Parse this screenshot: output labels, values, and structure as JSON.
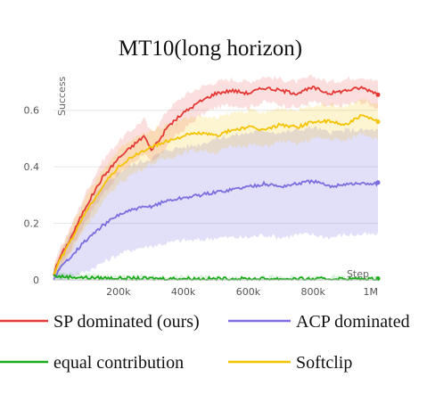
{
  "chart_data": {
    "type": "line",
    "title": "MT10(long horizon)",
    "xlabel": "Step",
    "ylabel": "Success",
    "xlim": [
      0,
      1000000
    ],
    "ylim": [
      0,
      0.7
    ],
    "x_ticks": [
      200000,
      400000,
      600000,
      800000,
      1000000
    ],
    "x_tick_labels": [
      "200k",
      "400k",
      "600k",
      "800k",
      "1M"
    ],
    "y_ticks": [
      0,
      0.2,
      0.4,
      0.6
    ],
    "y_tick_labels": [
      "0",
      "0.2",
      "0.4",
      "0.6"
    ],
    "grid": true,
    "legend_position": "bottom",
    "series": [
      {
        "name": "SP dominated (ours)",
        "color": "#e53935",
        "x": [
          0,
          20000,
          50000,
          100000,
          150000,
          200000,
          250000,
          280000,
          300000,
          330000,
          350000,
          400000,
          450000,
          500000,
          550000,
          600000,
          650000,
          700000,
          750000,
          800000,
          850000,
          900000,
          950000,
          1000000
        ],
        "y": [
          0.02,
          0.08,
          0.14,
          0.26,
          0.36,
          0.43,
          0.48,
          0.51,
          0.46,
          0.5,
          0.54,
          0.59,
          0.63,
          0.66,
          0.67,
          0.66,
          0.68,
          0.67,
          0.66,
          0.68,
          0.66,
          0.67,
          0.68,
          0.66
        ],
        "band_lower": [
          0.0,
          0.05,
          0.1,
          0.21,
          0.3,
          0.37,
          0.42,
          0.45,
          0.41,
          0.44,
          0.48,
          0.53,
          0.58,
          0.61,
          0.62,
          0.61,
          0.63,
          0.62,
          0.61,
          0.63,
          0.61,
          0.62,
          0.63,
          0.61
        ],
        "band_upper": [
          0.04,
          0.11,
          0.18,
          0.31,
          0.42,
          0.49,
          0.54,
          0.57,
          0.52,
          0.56,
          0.6,
          0.65,
          0.68,
          0.7,
          0.71,
          0.7,
          0.72,
          0.71,
          0.7,
          0.72,
          0.7,
          0.71,
          0.72,
          0.7
        ]
      },
      {
        "name": "ACP dominated",
        "color": "#7b6fe0",
        "x": [
          0,
          20000,
          50000,
          100000,
          150000,
          200000,
          250000,
          300000,
          350000,
          400000,
          450000,
          500000,
          550000,
          600000,
          650000,
          700000,
          750000,
          800000,
          850000,
          900000,
          950000,
          1000000
        ],
        "y": [
          0.0,
          0.04,
          0.08,
          0.14,
          0.19,
          0.23,
          0.25,
          0.26,
          0.28,
          0.29,
          0.3,
          0.31,
          0.32,
          0.33,
          0.34,
          0.33,
          0.34,
          0.35,
          0.33,
          0.34,
          0.34,
          0.34
        ],
        "band_lower": [
          0.0,
          0.0,
          0.01,
          0.03,
          0.06,
          0.09,
          0.11,
          0.12,
          0.13,
          0.14,
          0.14,
          0.15,
          0.15,
          0.15,
          0.16,
          0.15,
          0.16,
          0.16,
          0.15,
          0.16,
          0.16,
          0.16
        ],
        "band_upper": [
          0.02,
          0.09,
          0.16,
          0.26,
          0.33,
          0.38,
          0.41,
          0.43,
          0.46,
          0.47,
          0.48,
          0.5,
          0.51,
          0.52,
          0.53,
          0.52,
          0.53,
          0.54,
          0.52,
          0.53,
          0.53,
          0.53
        ]
      },
      {
        "name": "equal contribution",
        "color": "#1aab1a",
        "x": [
          0,
          20000,
          100000,
          200000,
          300000,
          400000,
          500000,
          600000,
          700000,
          800000,
          900000,
          1000000
        ],
        "y": [
          0.015,
          0.012,
          0.008,
          0.006,
          0.005,
          0.005,
          0.004,
          0.004,
          0.004,
          0.003,
          0.004,
          0.003
        ],
        "band_lower": [
          0.0,
          0.0,
          0.0,
          0.0,
          0.0,
          0.0,
          0.0,
          0.0,
          0.0,
          0.0,
          0.0,
          0.0
        ],
        "band_upper": [
          0.03,
          0.025,
          0.018,
          0.014,
          0.012,
          0.011,
          0.01,
          0.01,
          0.01,
          0.009,
          0.01,
          0.009
        ]
      },
      {
        "name": "Softclip",
        "color": "#f5c400",
        "x": [
          0,
          20000,
          50000,
          100000,
          150000,
          200000,
          250000,
          300000,
          350000,
          400000,
          450000,
          500000,
          550000,
          600000,
          650000,
          700000,
          750000,
          800000,
          850000,
          900000,
          950000,
          1000000
        ],
        "y": [
          0.02,
          0.07,
          0.13,
          0.24,
          0.33,
          0.4,
          0.44,
          0.47,
          0.49,
          0.51,
          0.52,
          0.51,
          0.53,
          0.54,
          0.53,
          0.55,
          0.54,
          0.56,
          0.56,
          0.55,
          0.58,
          0.56
        ],
        "band_lower": [
          0.0,
          0.04,
          0.09,
          0.19,
          0.27,
          0.34,
          0.38,
          0.41,
          0.43,
          0.45,
          0.46,
          0.45,
          0.47,
          0.48,
          0.47,
          0.49,
          0.48,
          0.5,
          0.5,
          0.49,
          0.52,
          0.5
        ],
        "band_upper": [
          0.04,
          0.1,
          0.17,
          0.29,
          0.39,
          0.46,
          0.5,
          0.53,
          0.55,
          0.57,
          0.58,
          0.57,
          0.59,
          0.6,
          0.59,
          0.61,
          0.6,
          0.62,
          0.62,
          0.61,
          0.64,
          0.62
        ]
      }
    ]
  }
}
